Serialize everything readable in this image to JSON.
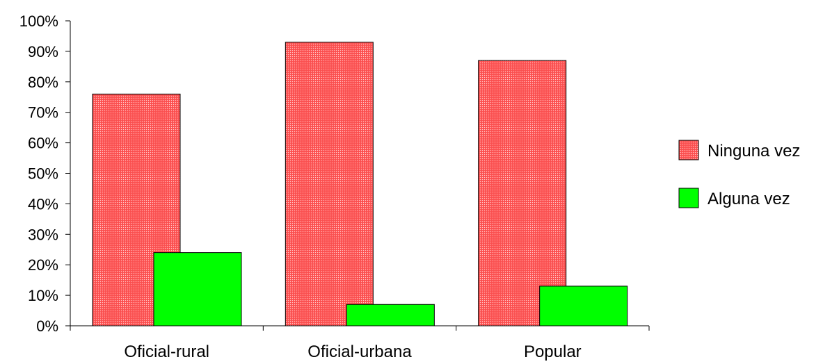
{
  "chart_data": {
    "type": "bar",
    "categories": [
      "Oficial-rural",
      "Oficial-urbana",
      "Popular"
    ],
    "series": [
      {
        "name": "Ninguna vez",
        "values": [
          76,
          93,
          87
        ],
        "color": "#ff4d4d"
      },
      {
        "name": "Alguna vez",
        "values": [
          24,
          7,
          13
        ],
        "color": "#00ff00"
      }
    ],
    "y_ticks": [
      "0%",
      "10%",
      "20%",
      "30%",
      "40%",
      "50%",
      "60%",
      "70%",
      "80%",
      "90%",
      "100%"
    ],
    "ylim": [
      0,
      100
    ],
    "legend_position": "right",
    "grid": false
  }
}
